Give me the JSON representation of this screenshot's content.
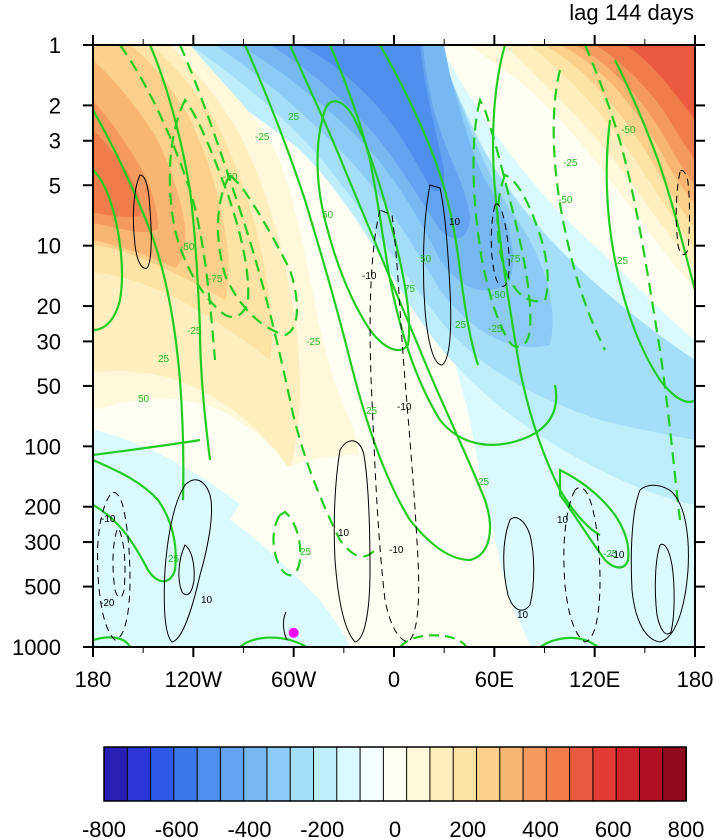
{
  "chart_data": {
    "type": "heatmap",
    "title": "lag 144 days",
    "xlabel": "",
    "ylabel": "",
    "x_ticks": [
      -180,
      -120,
      -60,
      0,
      60,
      120,
      180
    ],
    "x_tick_labels": [
      "180",
      "120W",
      "60W",
      "0",
      "60E",
      "120E",
      "180"
    ],
    "y_scale": "log",
    "y_reversed": true,
    "ylim": [
      1000,
      1
    ],
    "y_ticks": [
      1,
      2,
      3,
      5,
      10,
      20,
      30,
      50,
      100,
      200,
      300,
      500,
      1000
    ],
    "y_tick_labels": [
      "1",
      "2",
      "3",
      "5",
      "10",
      "20",
      "30",
      "50",
      "100",
      "200",
      "300",
      "500",
      "1000"
    ],
    "colorbar": {
      "min": -800,
      "max": 800,
      "step": 60,
      "tick_values": [
        -800,
        -600,
        -400,
        -200,
        0,
        200,
        400,
        600,
        800
      ],
      "tick_labels": [
        "-800",
        "-600",
        "-400",
        "-200",
        "0",
        "200",
        "400",
        "600",
        "800"
      ],
      "colors": [
        "#2a1fb5",
        "#2c36d6",
        "#2f5ae8",
        "#3b78ec",
        "#4f8fee",
        "#62a4f0",
        "#76b8f2",
        "#8ccbf5",
        "#a5def8",
        "#bfeefb",
        "#dbfafe",
        "#f3ffff",
        "#fffef2",
        "#fff8da",
        "#ffefbf",
        "#fde3a4",
        "#fbd08a",
        "#f8b672",
        "#f59a5e",
        "#f07c4c",
        "#ea5a3e",
        "#e23a34",
        "#cf222b",
        "#b10f23",
        "#8f0a1d"
      ]
    },
    "shaded_field": [
      {
        "lon": -160,
        "p": 6,
        "value": 520
      },
      {
        "lon": -150,
        "p": 20,
        "value": 330
      },
      {
        "lon": -130,
        "p": 50,
        "value": 190
      },
      {
        "lon": -100,
        "p": 150,
        "value": 70
      },
      {
        "lon": -70,
        "p": 1.5,
        "value": -90
      },
      {
        "lon": -20,
        "p": 1.5,
        "value": -420
      },
      {
        "lon": 10,
        "p": 7,
        "value": -320
      },
      {
        "lon": 40,
        "p": 30,
        "value": -170
      },
      {
        "lon": 70,
        "p": 60,
        "value": -100
      },
      {
        "lon": 100,
        "p": 200,
        "value": -40
      },
      {
        "lon": 90,
        "p": 1.5,
        "value": 120
      },
      {
        "lon": 150,
        "p": 3,
        "value": 460
      },
      {
        "lon": 160,
        "p": 10,
        "value": 300
      },
      {
        "lon": -30,
        "p": 200,
        "value": 40
      },
      {
        "lon": -160,
        "p": 500,
        "value": -30
      }
    ],
    "green_contour_labels": [
      "-25",
      "-50",
      "-50",
      "-75",
      "-25",
      "-25",
      "25",
      "50",
      "50",
      "25",
      "25",
      "25",
      "50",
      "75",
      "-50",
      "25",
      "-25",
      "-25",
      "-50",
      "-75",
      "-50",
      "25",
      "25",
      "25",
      "-25",
      "50",
      "-25",
      "25",
      "-25",
      "-25"
    ],
    "black_contour_labels": [
      "10",
      "-10",
      "-20",
      "10",
      "-10",
      "10",
      "10",
      "-10",
      "-10",
      "10",
      "-10",
      "10",
      "10"
    ],
    "marker": {
      "lon": -60,
      "p": 850,
      "color": "#ff00ff"
    }
  }
}
